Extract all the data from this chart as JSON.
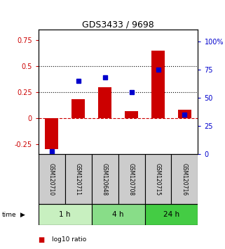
{
  "title": "GDS3433 / 9698",
  "samples": [
    "GSM120710",
    "GSM120711",
    "GSM120648",
    "GSM120708",
    "GSM120715",
    "GSM120716"
  ],
  "log10_ratio": [
    -0.3,
    0.18,
    0.3,
    0.07,
    0.65,
    0.08
  ],
  "percentile_rank": [
    3,
    65,
    68,
    55,
    75,
    35
  ],
  "time_groups": [
    {
      "label": "1 h",
      "start": 0,
      "end": 2,
      "color": "#c8f0c0"
    },
    {
      "label": "4 h",
      "start": 2,
      "end": 4,
      "color": "#88dd88"
    },
    {
      "label": "24 h",
      "start": 4,
      "end": 6,
      "color": "#44cc44"
    }
  ],
  "bar_color": "#cc0000",
  "dot_color": "#0000cc",
  "left_ylim": [
    -0.35,
    0.85
  ],
  "right_ylim": [
    0,
    110
  ],
  "left_yticks": [
    -0.25,
    0.0,
    0.25,
    0.5,
    0.75
  ],
  "right_yticks": [
    0,
    25,
    50,
    75,
    100
  ],
  "right_yticklabels": [
    "0",
    "25",
    "50",
    "75",
    "100%"
  ],
  "hlines": [
    0.5,
    0.25
  ],
  "zero_line": 0.0,
  "bg_color": "#ffffff",
  "sample_box_color": "#cccccc"
}
